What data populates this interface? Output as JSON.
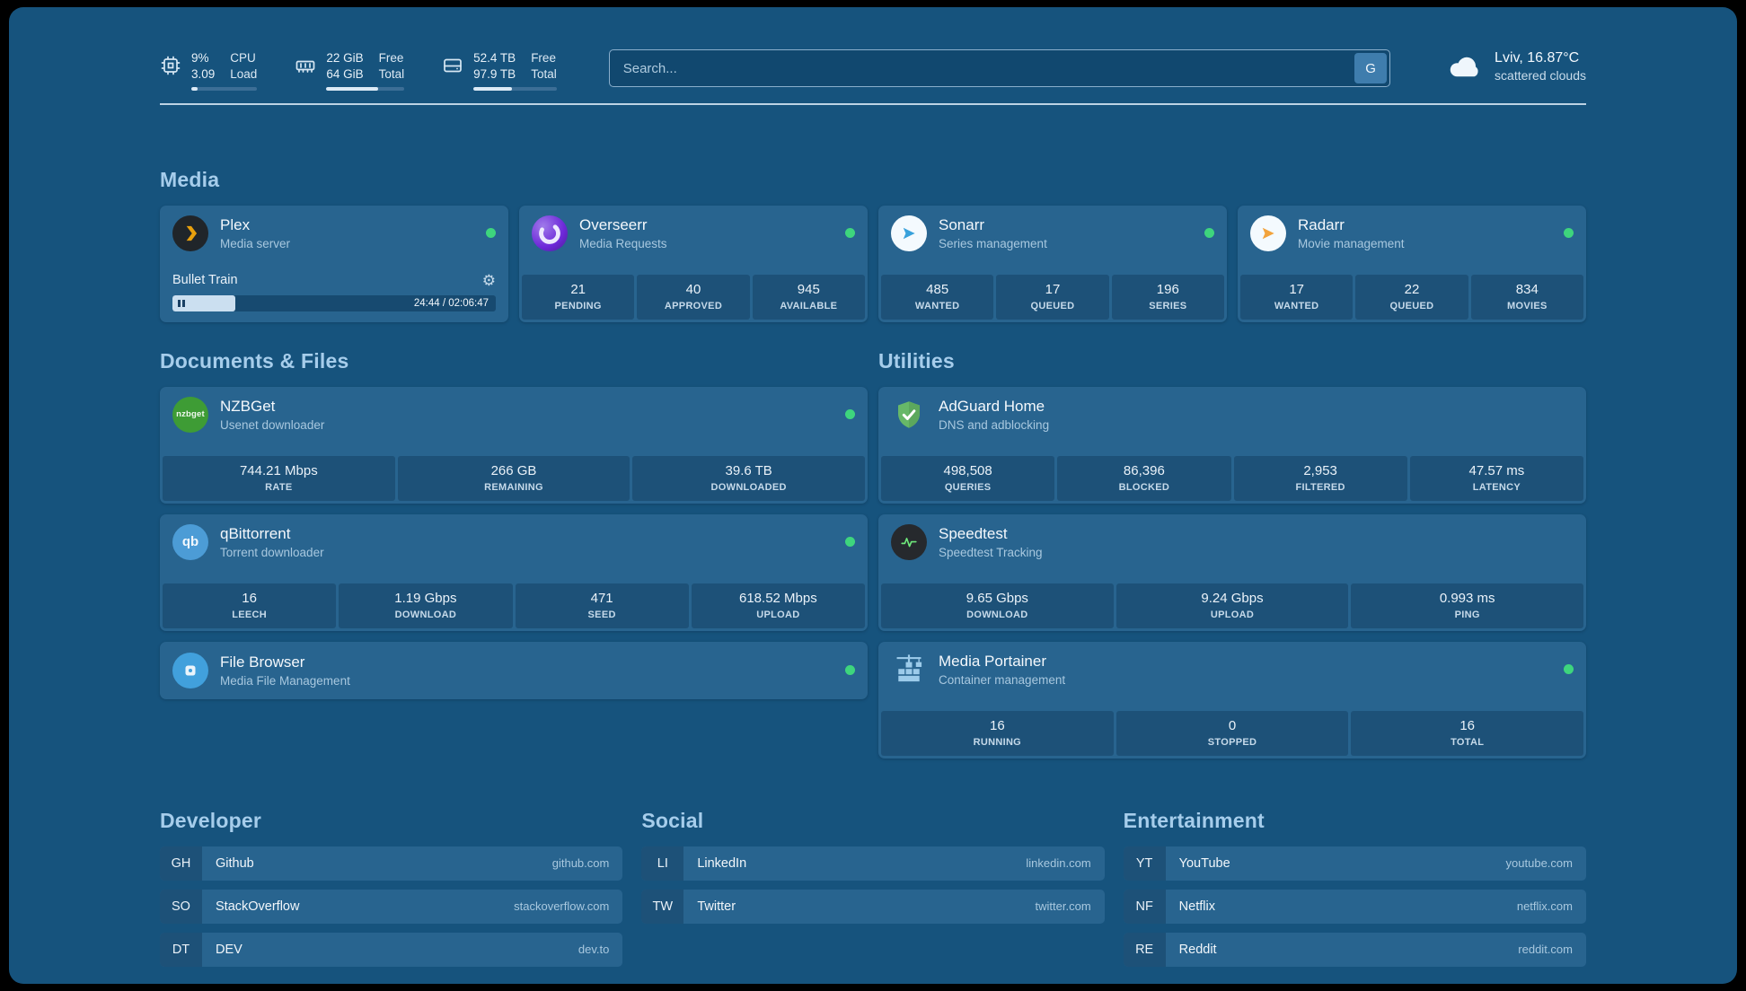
{
  "theme": {
    "page_background": "#16537D",
    "card_background": "#28648F",
    "stat_background": "#1D5178",
    "heading_color": "#A6CDEB",
    "status_online_color": "#3ED57D",
    "plex_accent": "#E5A00D"
  },
  "icons": {
    "gear": "⚙"
  },
  "topbar": {
    "resources": [
      {
        "icon": "cpu-icon",
        "values": [
          "9%",
          "3.09"
        ],
        "labels": [
          "CPU",
          "Load"
        ],
        "percent": 9
      },
      {
        "icon": "memory-icon",
        "values": [
          "22 GiB",
          "64 GiB"
        ],
        "labels": [
          "Free",
          "Total"
        ],
        "percent": 66
      },
      {
        "icon": "disk-icon",
        "values": [
          "52.4 TB",
          "97.9 TB"
        ],
        "labels": [
          "Free",
          "Total"
        ],
        "percent": 46
      }
    ],
    "search": {
      "placeholder": "Search...",
      "engine_label": "G"
    },
    "weather": {
      "icon": "cloud-icon",
      "location_temp": "Lviv, 16.87°C",
      "condition": "scattered clouds"
    }
  },
  "sections": {
    "media": {
      "title": "Media",
      "cards": [
        {
          "name": "Plex",
          "description": "Media server",
          "icon": "plex-icon",
          "status": "online",
          "player": {
            "title": "Bullet Train",
            "time": "24:44 / 02:06:47",
            "percent": 19.5,
            "state": "paused"
          }
        },
        {
          "name": "Overseerr",
          "description": "Media Requests",
          "icon": "overseerr-icon",
          "status": "online",
          "stats": [
            {
              "value": "21",
              "label": "PENDING"
            },
            {
              "value": "40",
              "label": "APPROVED"
            },
            {
              "value": "945",
              "label": "AVAILABLE"
            }
          ]
        },
        {
          "name": "Sonarr",
          "description": "Series management",
          "icon": "sonarr-icon",
          "status": "online",
          "stats": [
            {
              "value": "485",
              "label": "WANTED"
            },
            {
              "value": "17",
              "label": "QUEUED"
            },
            {
              "value": "196",
              "label": "SERIES"
            }
          ]
        },
        {
          "name": "Radarr",
          "description": "Movie management",
          "icon": "radarr-icon",
          "status": "online",
          "stats": [
            {
              "value": "17",
              "label": "WANTED"
            },
            {
              "value": "22",
              "label": "QUEUED"
            },
            {
              "value": "834",
              "label": "MOVIES"
            }
          ]
        }
      ]
    },
    "documents": {
      "title": "Documents & Files",
      "cards": [
        {
          "name": "NZBGet",
          "description": "Usenet downloader",
          "icon": "nzbget-icon",
          "icon_text": "nzbget",
          "status": "online",
          "stats": [
            {
              "value": "744.21 Mbps",
              "label": "RATE"
            },
            {
              "value": "266 GB",
              "label": "REMAINING"
            },
            {
              "value": "39.6 TB",
              "label": "DOWNLOADED"
            }
          ]
        },
        {
          "name": "qBittorrent",
          "description": "Torrent downloader",
          "icon": "qbittorrent-icon",
          "icon_text": "qb",
          "status": "online",
          "stats": [
            {
              "value": "16",
              "label": "LEECH"
            },
            {
              "value": "1.19 Gbps",
              "label": "DOWNLOAD"
            },
            {
              "value": "471",
              "label": "SEED"
            },
            {
              "value": "618.52 Mbps",
              "label": "UPLOAD"
            }
          ]
        },
        {
          "name": "File Browser",
          "description": "Media File Management",
          "icon": "filebrowser-icon",
          "status": "online"
        }
      ]
    },
    "utilities": {
      "title": "Utilities",
      "cards": [
        {
          "name": "AdGuard Home",
          "description": "DNS and adblocking",
          "icon": "adguard-icon",
          "stats": [
            {
              "value": "498,508",
              "label": "QUERIES"
            },
            {
              "value": "86,396",
              "label": "BLOCKED"
            },
            {
              "value": "2,953",
              "label": "FILTERED"
            },
            {
              "value": "47.57 ms",
              "label": "LATENCY"
            }
          ]
        },
        {
          "name": "Speedtest",
          "description": "Speedtest Tracking",
          "icon": "speedtest-icon",
          "stats": [
            {
              "value": "9.65 Gbps",
              "label": "DOWNLOAD"
            },
            {
              "value": "9.24 Gbps",
              "label": "UPLOAD"
            },
            {
              "value": "0.993 ms",
              "label": "PING"
            }
          ]
        },
        {
          "name": "Media Portainer",
          "description": "Container management",
          "icon": "portainer-icon",
          "status": "online",
          "stats": [
            {
              "value": "16",
              "label": "RUNNING"
            },
            {
              "value": "0",
              "label": "STOPPED"
            },
            {
              "value": "16",
              "label": "TOTAL"
            }
          ]
        }
      ]
    },
    "bookmarks": [
      {
        "title": "Developer",
        "links": [
          {
            "abbr": "GH",
            "name": "Github",
            "domain": "github.com"
          },
          {
            "abbr": "SO",
            "name": "StackOverflow",
            "domain": "stackoverflow.com"
          },
          {
            "abbr": "DT",
            "name": "DEV",
            "domain": "dev.to"
          }
        ]
      },
      {
        "title": "Social",
        "links": [
          {
            "abbr": "LI",
            "name": "LinkedIn",
            "domain": "linkedin.com"
          },
          {
            "abbr": "TW",
            "name": "Twitter",
            "domain": "twitter.com"
          }
        ]
      },
      {
        "title": "Entertainment",
        "links": [
          {
            "abbr": "YT",
            "name": "YouTube",
            "domain": "youtube.com"
          },
          {
            "abbr": "NF",
            "name": "Netflix",
            "domain": "netflix.com"
          },
          {
            "abbr": "RE",
            "name": "Reddit",
            "domain": "reddit.com"
          }
        ]
      }
    ]
  }
}
